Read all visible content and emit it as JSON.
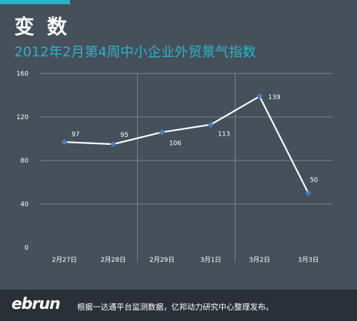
{
  "header": {
    "title": "变 数",
    "subtitle": "2012年2月第4周中小企业外贸景气指数"
  },
  "footer": {
    "logo": "ebrun",
    "note": "根据一达通平台监测数据，亿邦动力研究中心整理发布。"
  },
  "colors": {
    "background": "#45505a",
    "accent": "#2bb3c9",
    "line": "#ffffff",
    "marker": "#4a7fc1",
    "footer": "#2a3037"
  },
  "chart_data": {
    "type": "line",
    "title": "",
    "xlabel": "",
    "ylabel": "",
    "categories": [
      "2月27日",
      "2月28日",
      "2月29日",
      "3月1日",
      "3月2日",
      "3月3日"
    ],
    "series": [
      {
        "values": [
          97,
          95,
          106,
          113,
          139,
          50
        ]
      }
    ],
    "ylim": [
      0,
      160
    ],
    "yticks": [
      0,
      40,
      80,
      120,
      160
    ],
    "data_labels": [
      "97",
      "95",
      "106",
      "113",
      "139",
      "50"
    ],
    "grid": "horizontal lines plus vertical lines at 2月29日 and 3月2日",
    "legend": "none"
  }
}
